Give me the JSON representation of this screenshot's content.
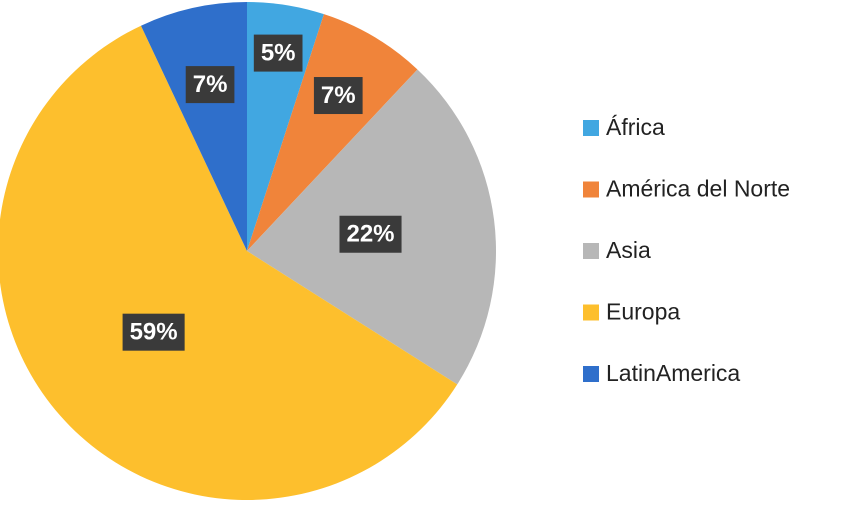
{
  "chart_data": {
    "type": "pie",
    "categories": [
      "África",
      "América del Norte",
      "Asia",
      "Europa",
      "LatinAmerica"
    ],
    "values": [
      5,
      7,
      22,
      59,
      7
    ],
    "value_labels": [
      "5%",
      "7%",
      "22%",
      "59%",
      "7%"
    ],
    "colors": [
      "#41a7e1",
      "#f0843a",
      "#b7b7b7",
      "#fdbf2d",
      "#2f6fcb"
    ],
    "legend": "right"
  }
}
